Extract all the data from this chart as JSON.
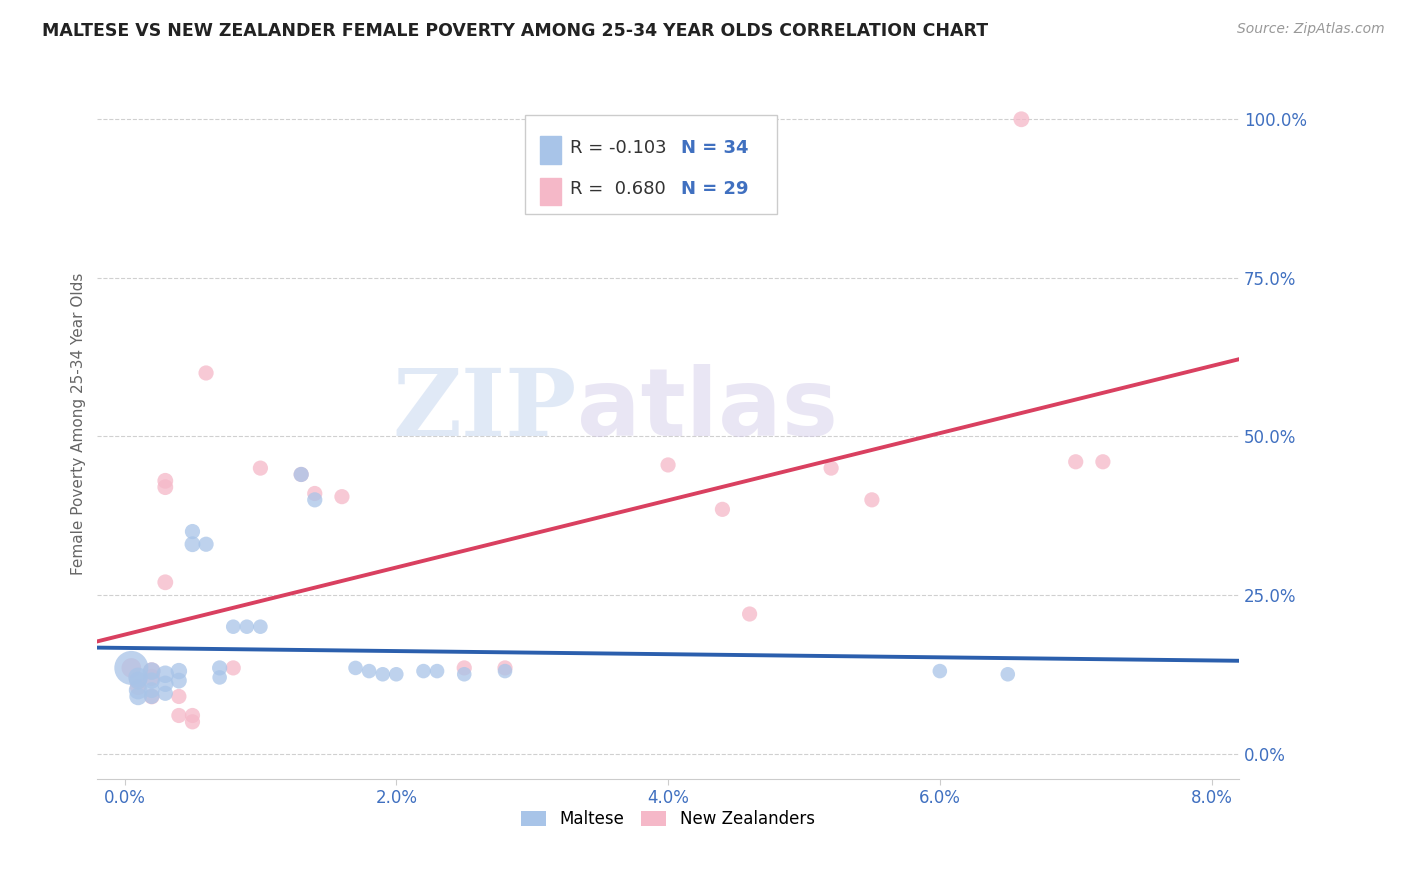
{
  "title": "MALTESE VS NEW ZEALANDER FEMALE POVERTY AMONG 25-34 YEAR OLDS CORRELATION CHART",
  "source": "Source: ZipAtlas.com",
  "ylabel": "Female Poverty Among 25-34 Year Olds",
  "legend_maltese_R": "-0.103",
  "legend_maltese_N": "34",
  "legend_nz_R": "0.680",
  "legend_nz_N": "29",
  "maltese_color": "#a8c4e8",
  "nz_color": "#f5b8c8",
  "trendline_maltese_color": "#2b5fad",
  "trendline_nz_color": "#d94060",
  "background_color": "#ffffff",
  "watermark_ZIP": "ZIP",
  "watermark_atlas": "atlas",
  "maltese_scatter": [
    [
      0.0005,
      0.135
    ],
    [
      0.001,
      0.12
    ],
    [
      0.001,
      0.1
    ],
    [
      0.001,
      0.09
    ],
    [
      0.001,
      0.115
    ],
    [
      0.002,
      0.13
    ],
    [
      0.002,
      0.115
    ],
    [
      0.002,
      0.1
    ],
    [
      0.002,
      0.09
    ],
    [
      0.003,
      0.125
    ],
    [
      0.003,
      0.11
    ],
    [
      0.003,
      0.095
    ],
    [
      0.004,
      0.13
    ],
    [
      0.004,
      0.115
    ],
    [
      0.005,
      0.33
    ],
    [
      0.005,
      0.35
    ],
    [
      0.006,
      0.33
    ],
    [
      0.007,
      0.135
    ],
    [
      0.007,
      0.12
    ],
    [
      0.008,
      0.2
    ],
    [
      0.009,
      0.2
    ],
    [
      0.01,
      0.2
    ],
    [
      0.013,
      0.44
    ],
    [
      0.014,
      0.4
    ],
    [
      0.017,
      0.135
    ],
    [
      0.018,
      0.13
    ],
    [
      0.019,
      0.125
    ],
    [
      0.02,
      0.125
    ],
    [
      0.022,
      0.13
    ],
    [
      0.023,
      0.13
    ],
    [
      0.025,
      0.125
    ],
    [
      0.028,
      0.13
    ],
    [
      0.06,
      0.13
    ],
    [
      0.065,
      0.125
    ]
  ],
  "nz_scatter": [
    [
      0.0005,
      0.135
    ],
    [
      0.001,
      0.115
    ],
    [
      0.001,
      0.105
    ],
    [
      0.002,
      0.13
    ],
    [
      0.002,
      0.12
    ],
    [
      0.002,
      0.09
    ],
    [
      0.003,
      0.27
    ],
    [
      0.003,
      0.42
    ],
    [
      0.003,
      0.43
    ],
    [
      0.004,
      0.09
    ],
    [
      0.004,
      0.06
    ],
    [
      0.005,
      0.06
    ],
    [
      0.005,
      0.05
    ],
    [
      0.006,
      0.6
    ],
    [
      0.008,
      0.135
    ],
    [
      0.01,
      0.45
    ],
    [
      0.013,
      0.44
    ],
    [
      0.014,
      0.41
    ],
    [
      0.016,
      0.405
    ],
    [
      0.025,
      0.135
    ],
    [
      0.028,
      0.135
    ],
    [
      0.04,
      0.455
    ],
    [
      0.044,
      0.385
    ],
    [
      0.046,
      0.22
    ],
    [
      0.052,
      0.45
    ],
    [
      0.055,
      0.4
    ],
    [
      0.066,
      1.0
    ],
    [
      0.07,
      0.46
    ],
    [
      0.072,
      0.46
    ]
  ],
  "maltese_sizes": [
    600,
    200,
    180,
    160,
    160,
    160,
    140,
    130,
    120,
    160,
    140,
    120,
    140,
    130,
    130,
    120,
    120,
    120,
    110,
    110,
    110,
    110,
    120,
    120,
    110,
    110,
    110,
    110,
    110,
    110,
    110,
    110,
    110,
    110
  ],
  "nz_sizes": [
    200,
    160,
    140,
    160,
    150,
    130,
    130,
    130,
    130,
    120,
    120,
    120,
    120,
    120,
    120,
    120,
    120,
    120,
    120,
    120,
    120,
    120,
    120,
    120,
    120,
    120,
    130,
    120,
    120
  ],
  "xlim": [
    -0.002,
    0.082
  ],
  "ylim": [
    -0.04,
    1.08
  ],
  "xtick_positions": [
    0.0,
    0.02,
    0.04,
    0.06,
    0.08
  ],
  "ytick_vals": [
    0.0,
    0.25,
    0.5,
    0.75,
    1.0
  ],
  "grid_color": "#d0d0d0"
}
